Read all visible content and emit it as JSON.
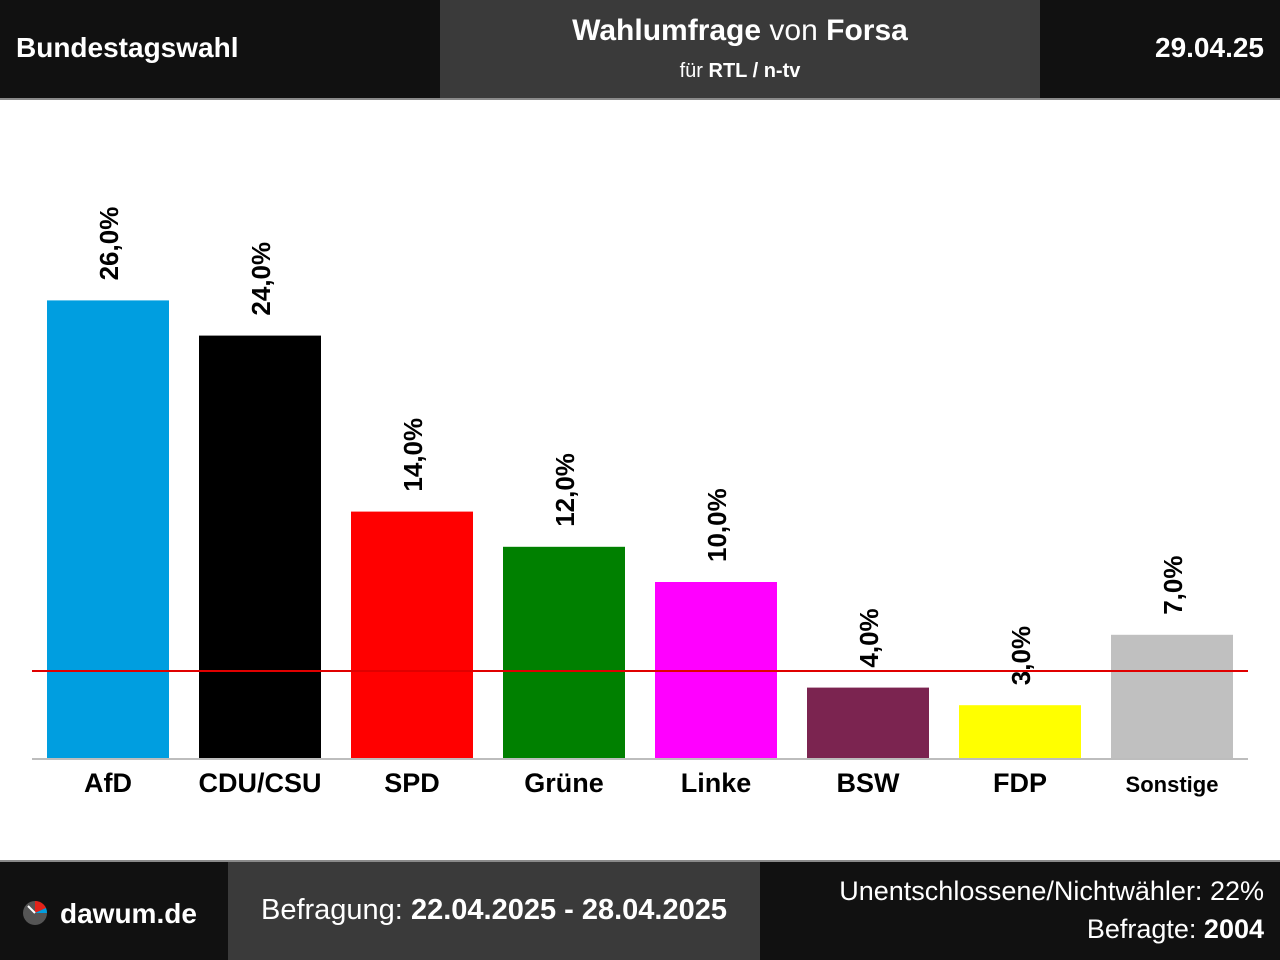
{
  "header": {
    "title": "Bundestagswahl",
    "poll_word": "Wahlumfrage",
    "poll_von": "von",
    "institute": "Forsa",
    "client_prefix": "für",
    "client": "RTL / n-tv",
    "date": "29.04.25"
  },
  "footer": {
    "site": "dawum.de",
    "survey_label": "Befragung:",
    "survey_period": "22.04.2025 - 28.04.2025",
    "undecided_label": "Unentschlossene/Nichtwähler:",
    "undecided_value": "22%",
    "respondents_label": "Befragte:",
    "respondents_value": "2004"
  },
  "chart_data": {
    "type": "bar",
    "categories": [
      "AfD",
      "CDU/CSU",
      "SPD",
      "Grüne",
      "Linke",
      "BSW",
      "FDP",
      "Sonstige"
    ],
    "values": [
      26.0,
      24.0,
      14.0,
      12.0,
      10.0,
      4.0,
      3.0,
      7.0
    ],
    "value_labels": [
      "26,0%",
      "24,0%",
      "14,0%",
      "12,0%",
      "10,0%",
      "4,0%",
      "3,0%",
      "7,0%"
    ],
    "colors": [
      "#009ee0",
      "#000000",
      "#ff0000",
      "#008000",
      "#ff00ff",
      "#7b2450",
      "#ffff00",
      "#c0c0c0"
    ],
    "threshold": 5.0,
    "threshold_color": "#e00000",
    "ylim": [
      0,
      30
    ],
    "grid": false,
    "title": "",
    "xlabel": "",
    "ylabel": ""
  }
}
